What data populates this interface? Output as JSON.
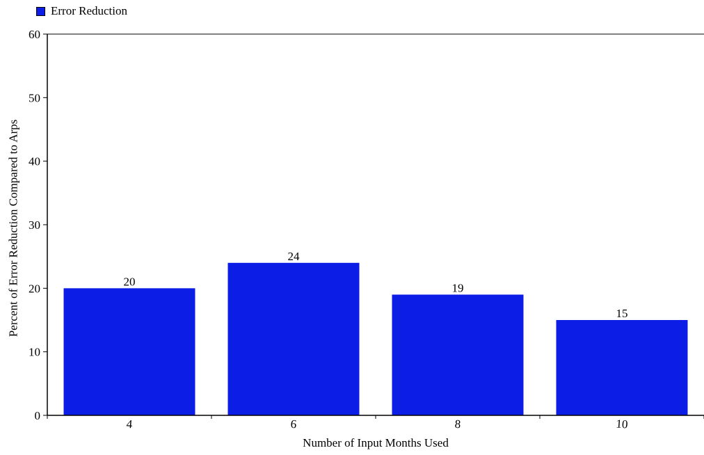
{
  "chart_data": {
    "type": "bar",
    "categories": [
      "4",
      "6",
      "8",
      "10"
    ],
    "series": [
      {
        "name": "Error Reduction",
        "values": [
          20,
          24,
          19,
          15
        ],
        "color": "#0c1de6"
      }
    ],
    "data_labels": [
      "20",
      "24",
      "19",
      "15"
    ],
    "xlabel": "Number of Input Months Used",
    "ylabel": "Percent of Error Reduction Compared to Arps",
    "ylim": [
      0,
      60
    ],
    "yticks": [
      "0",
      "10",
      "20",
      "30",
      "40",
      "50",
      "60"
    ],
    "grid": false,
    "legend_position": "top-left"
  }
}
